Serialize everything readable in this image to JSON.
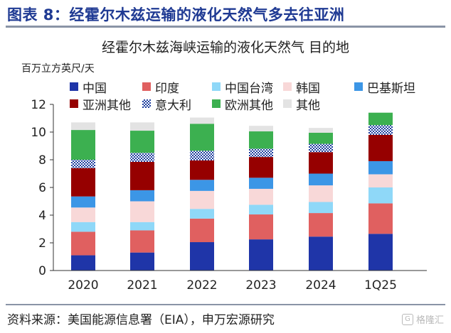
{
  "figure": {
    "title": "图表 8：经霍尔木兹运输的液化天然气多去往亚洲",
    "source": "资料来源：美国能源信息署（EIA），申万宏源研究",
    "watermark": "格隆汇"
  },
  "colors": {
    "title": "#1f3a93",
    "rule": "#8a94a6",
    "axis": "#333333"
  },
  "chart_data": {
    "type": "bar",
    "stacked": true,
    "title": "经霍尔木兹海峡运输的液化天然气 目的地",
    "ylabel": "百万立方英尺/天",
    "xlabel": "",
    "ylim": [
      0,
      12
    ],
    "yticks": [
      0,
      2,
      4,
      6,
      8,
      10,
      12
    ],
    "grid": false,
    "legend_position": "top",
    "categories": [
      "2020",
      "2021",
      "2022",
      "2023",
      "2024",
      "1Q25"
    ],
    "series": [
      {
        "name": "中国",
        "color": "#1f35a8",
        "pattern": "solid",
        "values": [
          1.1,
          1.3,
          2.05,
          2.25,
          2.45,
          2.65
        ]
      },
      {
        "name": "印度",
        "color": "#e06060",
        "pattern": "solid",
        "values": [
          1.7,
          1.6,
          1.7,
          1.8,
          1.7,
          2.2
        ]
      },
      {
        "name": "中国台湾",
        "color": "#8fd8f8",
        "pattern": "solid",
        "values": [
          0.7,
          0.6,
          0.7,
          0.7,
          0.8,
          1.15
        ]
      },
      {
        "name": "韩国",
        "color": "#f8d8d8",
        "pattern": "solid",
        "values": [
          1.05,
          1.5,
          1.3,
          1.15,
          1.2,
          0.95
        ]
      },
      {
        "name": "巴基斯坦",
        "color": "#3c96e6",
        "pattern": "solid",
        "values": [
          0.8,
          0.8,
          0.8,
          0.8,
          0.85,
          0.95
        ]
      },
      {
        "name": "亚洲其他",
        "color": "#960000",
        "pattern": "solid",
        "values": [
          2.05,
          2.05,
          1.4,
          1.5,
          1.55,
          1.9
        ]
      },
      {
        "name": "意大利",
        "color": "#1f3f9f",
        "pattern": "checker",
        "values": [
          0.6,
          0.65,
          0.7,
          0.6,
          0.6,
          0.7
        ]
      },
      {
        "name": "欧洲其他",
        "color": "#3cb050",
        "pattern": "solid",
        "values": [
          2.15,
          1.6,
          1.95,
          1.25,
          0.8,
          0.9
        ]
      },
      {
        "name": "其他",
        "color": "#e3e3e3",
        "pattern": "solid",
        "values": [
          0.55,
          0.6,
          0.45,
          0.4,
          0.35,
          0.0
        ]
      }
    ]
  }
}
